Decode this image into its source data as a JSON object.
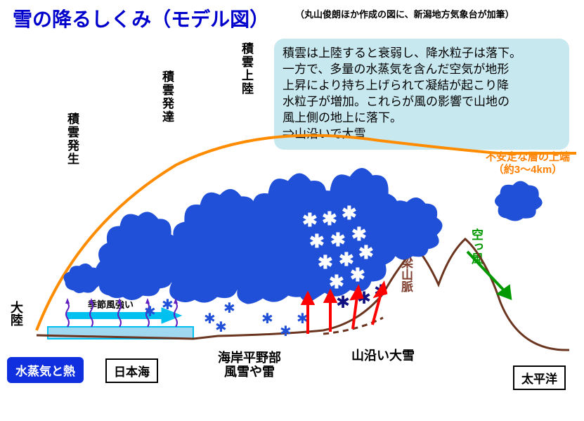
{
  "title": "雪の降るしくみ（モデル図）",
  "subtitle": "（丸山俊朗ほか作成の図に、新潟地方気象台が加筆）",
  "stages": {
    "s1": "積雲発生",
    "s2": "積雲発達",
    "s3": "積雲上陸"
  },
  "explain_lines": [
    "積雲は上陸すると衰弱し、降水粒子は落下。",
    "一方で、多量の水蒸気を含んだ空気が地形",
    "上昇により持ち上げられて凝結が起こり降",
    "水粒子が増加。これらが風の影響で山地の",
    "風上側の地上に落下。",
    "⇒山沿いで大雪"
  ],
  "unstable_line1": "不安定な層の上端",
  "unstable_line2": "（約3～4km）",
  "continent": "大陸",
  "monsoon": "季節風強い",
  "vapor_heat": "水蒸気と熱",
  "sea": "日本海",
  "pacific": "太平洋",
  "updraft": "上昇気流",
  "ridge": "脊梁山脈",
  "karakaze": "空っ風",
  "region_coast": "海岸平野部\n風雪や雷",
  "region_mountain": "山沿い大雪",
  "colors": {
    "title": "#0000cc",
    "cloud": "#2050d8",
    "orange": "#ff8c00",
    "terrain": "#6b3520",
    "water": "#a0d8f0",
    "water_border": "#00c0f0",
    "green": "#009900",
    "red": "#ff0000",
    "purple": "#6020c0",
    "snow": "#ffffff",
    "dark_snow": "#101080",
    "box_bg": "#c8e8f0"
  }
}
